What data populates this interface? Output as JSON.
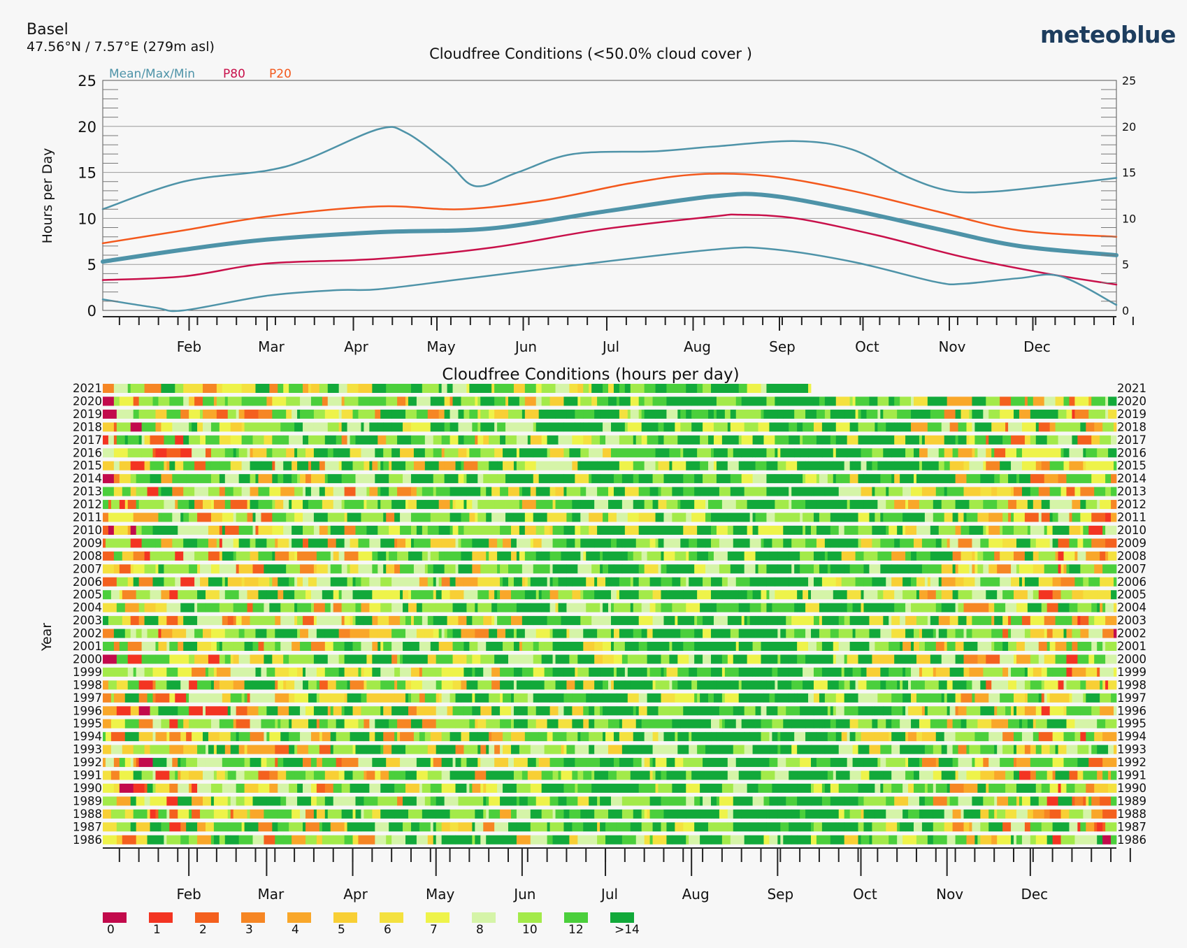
{
  "location": {
    "name": "Basel",
    "coords": "47.56°N / 7.57°E (279m asl)"
  },
  "brand": "meteoblue",
  "colors": {
    "mean": "#4e93a8",
    "p80": "#c8104a",
    "p20": "#f3581c",
    "grid": "#9a9a9a"
  },
  "chart_data": [
    {
      "type": "line",
      "title": "Cloudfree Conditions (<50.0% cloud cover )",
      "ylabel": "Hours per Day",
      "ylim": [
        0,
        25
      ],
      "yticks": [
        0,
        5,
        10,
        15,
        20,
        25
      ],
      "months": [
        "Feb",
        "Mar",
        "Apr",
        "May",
        "Jun",
        "Jul",
        "Aug",
        "Sep",
        "Oct",
        "Nov",
        "Dec"
      ],
      "month_start_doy": [
        32,
        60,
        91,
        121,
        152,
        182,
        213,
        244,
        274,
        305,
        335
      ],
      "legend": [
        "Mean/Max/Min",
        "P80",
        "P20"
      ],
      "grid": true,
      "x_unit": "day of year",
      "series": [
        {
          "name": "Max",
          "color": "#4e93a8",
          "width": 2.5,
          "x": [
            1,
            30,
            60,
            75,
            100,
            110,
            125,
            135,
            150,
            170,
            200,
            220,
            250,
            270,
            290,
            305,
            320,
            340,
            365
          ],
          "y": [
            11,
            14,
            15.2,
            16.5,
            19.7,
            19.3,
            16,
            13.5,
            15,
            17,
            17.3,
            17.8,
            18.4,
            17.5,
            14.5,
            13,
            12.9,
            13.5,
            14.4
          ]
        },
        {
          "name": "P20",
          "color": "#f3581c",
          "width": 2.5,
          "x": [
            1,
            30,
            60,
            100,
            130,
            160,
            190,
            215,
            240,
            270,
            300,
            330,
            365
          ],
          "y": [
            7.3,
            8.7,
            10.2,
            11.3,
            11,
            12,
            13.8,
            14.8,
            14.6,
            13,
            10.8,
            8.7,
            8
          ]
        },
        {
          "name": "Mean",
          "color": "#4e93a8",
          "width": 6,
          "x": [
            1,
            30,
            60,
            100,
            140,
            180,
            220,
            240,
            270,
            300,
            330,
            365
          ],
          "y": [
            5.3,
            6.6,
            7.7,
            8.5,
            8.9,
            10.7,
            12.4,
            12.5,
            10.9,
            8.9,
            7,
            6
          ]
        },
        {
          "name": "P80",
          "color": "#c8104a",
          "width": 2.5,
          "x": [
            1,
            30,
            60,
            100,
            140,
            180,
            220,
            230,
            250,
            280,
            310,
            340,
            365
          ],
          "y": [
            3.3,
            3.7,
            5.1,
            5.6,
            6.8,
            8.8,
            10.2,
            10.4,
            10,
            8.1,
            5.8,
            4,
            2.8
          ]
        },
        {
          "name": "Min",
          "color": "#4e93a8",
          "width": 2.5,
          "x": [
            1,
            20,
            30,
            60,
            85,
            100,
            130,
            170,
            220,
            240,
            270,
            300,
            310,
            330,
            345,
            365
          ],
          "y": [
            1.2,
            0.3,
            0,
            1.6,
            2.2,
            2.3,
            3.4,
            4.9,
            6.6,
            6.7,
            5.3,
            3.1,
            2.9,
            3.5,
            3.7,
            0.6
          ]
        }
      ]
    },
    {
      "type": "heatmap",
      "title": "Cloudfree Conditions (hours per day)",
      "ylabel": "Year",
      "years": [
        2021,
        2020,
        2019,
        2018,
        2017,
        2016,
        2015,
        2014,
        2013,
        2012,
        2011,
        2010,
        2009,
        2008,
        2007,
        2006,
        2005,
        2004,
        2003,
        2002,
        2001,
        2000,
        1999,
        1998,
        1997,
        1996,
        1995,
        1994,
        1993,
        1992,
        1991,
        1990,
        1989,
        1988,
        1987,
        1986
      ],
      "months": [
        "Feb",
        "Mar",
        "Apr",
        "May",
        "Jun",
        "Jul",
        "Aug",
        "Sep",
        "Oct",
        "Nov",
        "Dec"
      ],
      "x_unit": "day of year",
      "last_day_2021": 255,
      "colorbar": {
        "labels": [
          "0",
          "1",
          "2",
          "3",
          "4",
          "5",
          "6",
          "7",
          "8",
          "10",
          "12",
          ">14"
        ],
        "colors": [
          "#c20a4c",
          "#f33422",
          "#f4601e",
          "#f68624",
          "#f9a72a",
          "#f8cf35",
          "#f4e13f",
          "#eef34a",
          "#d5f4a8",
          "#a3ea4a",
          "#4bcf3c",
          "#12a93a"
        ]
      },
      "note": "Per-day cloudfree values are too numerous to read individually; cells are rendered procedurally following the seasonal mean pattern of the upper chart."
    }
  ]
}
